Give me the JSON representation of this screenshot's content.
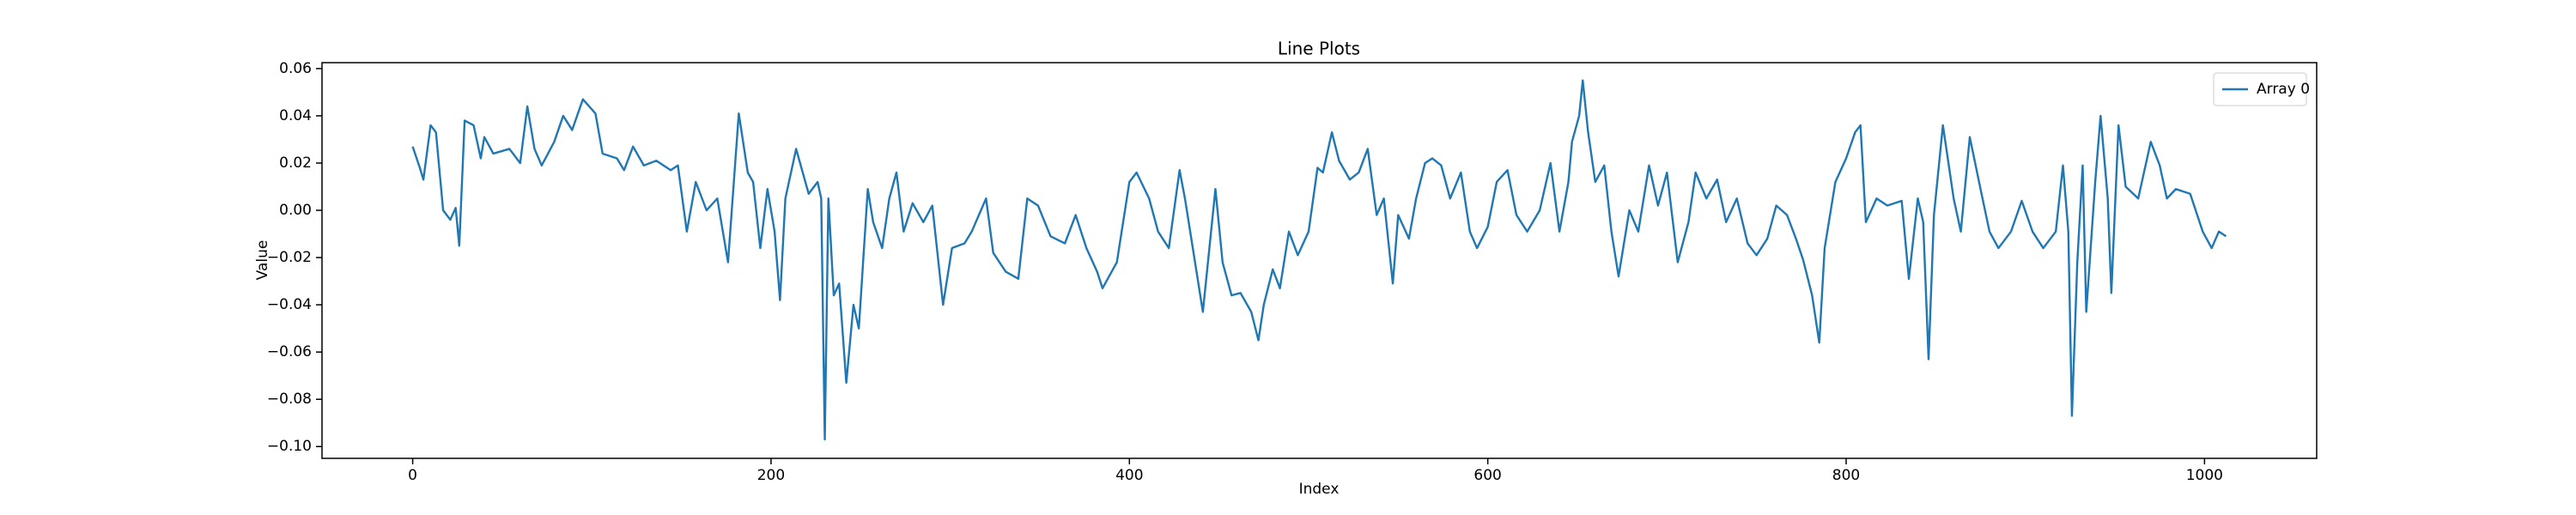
{
  "chart_data": {
    "type": "line",
    "title": "Line Plots",
    "xlabel": "Index",
    "ylabel": "Value",
    "x": [
      0,
      4,
      6,
      10,
      13,
      17,
      21,
      24,
      26,
      29,
      34,
      38,
      40,
      45,
      54,
      60,
      64,
      68,
      72,
      79,
      84,
      89,
      95,
      102,
      106,
      114,
      118,
      123,
      129,
      136,
      144,
      148,
      153,
      158,
      164,
      170,
      176,
      182,
      187,
      190,
      194,
      198,
      202,
      205,
      208,
      214,
      221,
      226,
      228,
      230,
      232,
      235,
      238,
      242,
      246,
      249,
      254,
      257,
      262,
      266,
      270,
      274,
      279,
      285,
      290,
      296,
      301,
      308,
      312,
      320,
      324,
      331,
      338,
      343,
      349,
      356,
      364,
      370,
      376,
      382,
      385,
      393,
      400,
      404,
      411,
      416,
      422,
      428,
      431,
      436,
      441,
      448,
      452,
      457,
      462,
      468,
      472,
      475,
      480,
      484,
      489,
      494,
      500,
      505,
      508,
      513,
      517,
      523,
      528,
      533,
      538,
      542,
      547,
      550,
      556,
      560,
      565,
      569,
      574,
      579,
      585,
      590,
      594,
      600,
      605,
      611,
      616,
      622,
      629,
      635,
      640,
      645,
      647,
      651,
      653,
      656,
      660,
      665,
      669,
      673,
      679,
      684,
      690,
      695,
      700,
      706,
      712,
      716,
      722,
      728,
      733,
      739,
      745,
      750,
      756,
      761,
      767,
      772,
      776,
      781,
      785,
      788,
      794,
      800,
      805,
      808,
      811,
      817,
      823,
      831,
      835,
      840,
      843,
      846,
      849,
      854,
      860,
      864,
      869,
      875,
      880,
      885,
      892,
      898,
      904,
      910,
      917,
      921,
      924,
      926,
      929,
      932,
      934,
      939,
      942,
      946,
      948,
      952,
      956,
      963,
      970,
      975,
      979,
      984,
      992,
      999,
      1004,
      1008,
      1012
    ],
    "series": [
      {
        "name": "Array 0",
        "color": "#1f77b4",
        "values": [
          0.027,
          0.018,
          0.013,
          0.036,
          0.033,
          0.0,
          -0.004,
          0.001,
          -0.015,
          0.038,
          0.036,
          0.022,
          0.031,
          0.024,
          0.026,
          0.02,
          0.044,
          0.026,
          0.019,
          0.029,
          0.04,
          0.034,
          0.047,
          0.041,
          0.024,
          0.022,
          0.017,
          0.027,
          0.019,
          0.021,
          0.017,
          0.019,
          -0.009,
          0.012,
          0.0,
          0.005,
          -0.022,
          0.041,
          0.016,
          0.012,
          -0.016,
          0.009,
          -0.009,
          -0.038,
          0.005,
          0.026,
          0.007,
          0.012,
          0.005,
          -0.097,
          0.005,
          -0.036,
          -0.031,
          -0.073,
          -0.04,
          -0.05,
          0.009,
          -0.005,
          -0.016,
          0.005,
          0.016,
          -0.009,
          0.003,
          -0.005,
          0.002,
          -0.04,
          -0.016,
          -0.014,
          -0.009,
          0.005,
          -0.018,
          -0.026,
          -0.029,
          0.005,
          0.002,
          -0.011,
          -0.014,
          -0.002,
          -0.016,
          -0.026,
          -0.033,
          -0.022,
          0.012,
          0.016,
          0.005,
          -0.009,
          -0.016,
          0.017,
          0.005,
          -0.019,
          -0.043,
          0.009,
          -0.022,
          -0.036,
          -0.035,
          -0.043,
          -0.055,
          -0.04,
          -0.025,
          -0.033,
          -0.009,
          -0.019,
          -0.009,
          0.018,
          0.016,
          0.033,
          0.021,
          0.013,
          0.016,
          0.026,
          -0.002,
          0.005,
          -0.031,
          -0.002,
          -0.012,
          0.005,
          0.02,
          0.022,
          0.019,
          0.005,
          0.016,
          -0.009,
          -0.016,
          -0.007,
          0.012,
          0.017,
          -0.002,
          -0.009,
          0.0,
          0.02,
          -0.009,
          0.012,
          0.029,
          0.04,
          0.055,
          0.033,
          0.012,
          0.019,
          -0.009,
          -0.028,
          0.0,
          -0.009,
          0.019,
          0.002,
          0.016,
          -0.022,
          -0.005,
          0.016,
          0.005,
          0.013,
          -0.005,
          0.005,
          -0.014,
          -0.019,
          -0.012,
          0.002,
          -0.002,
          -0.012,
          -0.021,
          -0.036,
          -0.056,
          -0.016,
          0.012,
          0.022,
          0.033,
          0.036,
          -0.005,
          0.005,
          0.002,
          0.004,
          -0.029,
          0.005,
          -0.005,
          -0.063,
          -0.002,
          0.036,
          0.005,
          -0.009,
          0.031,
          0.009,
          -0.009,
          -0.016,
          -0.009,
          0.004,
          -0.009,
          -0.016,
          -0.009,
          0.019,
          -0.009,
          -0.087,
          -0.022,
          0.019,
          -0.043,
          0.012,
          0.04,
          0.005,
          -0.035,
          0.036,
          0.01,
          0.005,
          0.029,
          0.019,
          0.005,
          0.009,
          0.007,
          -0.009,
          -0.016,
          -0.009,
          -0.011
        ]
      }
    ],
    "xlim": [
      -50.6,
      1062.6
    ],
    "ylim": [
      -0.105,
      0.0625
    ],
    "xticks": [
      0,
      200,
      400,
      600,
      800,
      1000
    ],
    "yticks": [
      {
        "value": -0.1,
        "label": "−0.10"
      },
      {
        "value": -0.08,
        "label": "−0.08"
      },
      {
        "value": -0.06,
        "label": "−0.06"
      },
      {
        "value": -0.04,
        "label": "−0.04"
      },
      {
        "value": -0.02,
        "label": "−0.02"
      },
      {
        "value": 0,
        "label": "0.00"
      },
      0.02,
      0.04,
      0.06
    ],
    "grid": false,
    "legend": "upper right"
  }
}
